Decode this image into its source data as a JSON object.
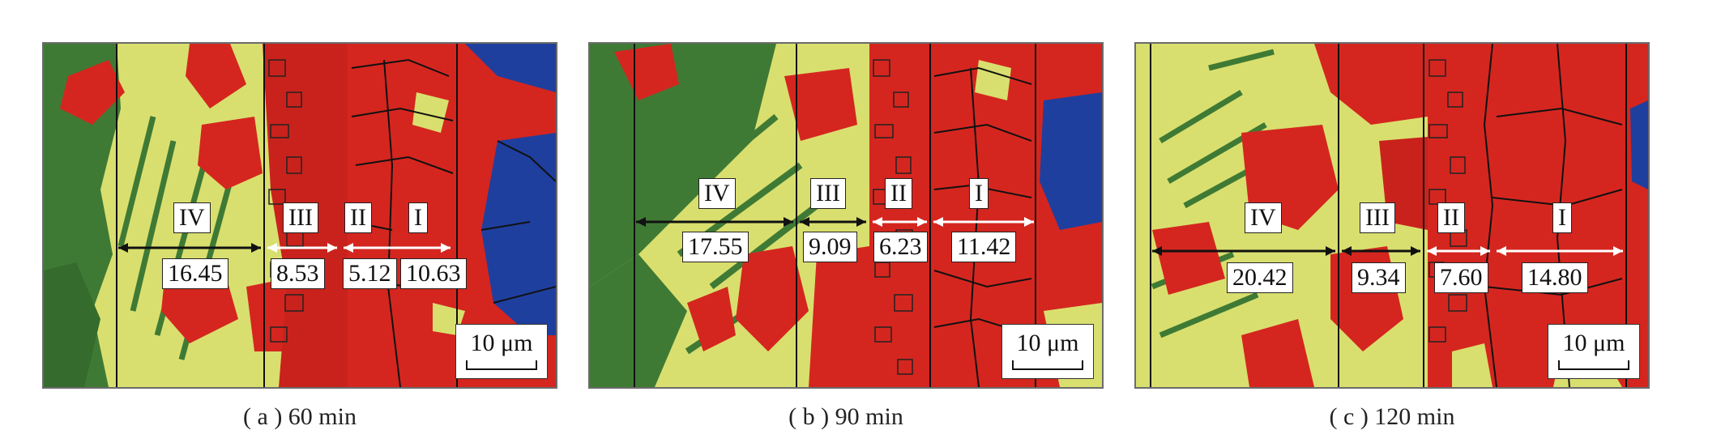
{
  "colors": {
    "yellow_phase": "#d9df6e",
    "red_phase": "#d4261f",
    "green_phase": "#3f7a35",
    "blue_phase": "#1f3f9e",
    "boundary": "#111111",
    "arrow_dark": "#111111",
    "arrow_light": "#ffffff"
  },
  "panels": [
    {
      "caption": "( a ) 60 min",
      "zones": [
        {
          "roman": "IV",
          "value": "16.45"
        },
        {
          "roman": "III",
          "value": "8.53"
        },
        {
          "roman": "II",
          "value": "5.12"
        },
        {
          "roman": "I",
          "value": "10.63"
        }
      ],
      "scale_label": "10 μm"
    },
    {
      "caption": "( b ) 90 min",
      "zones": [
        {
          "roman": "IV",
          "value": "17.55"
        },
        {
          "roman": "III",
          "value": "9.09"
        },
        {
          "roman": "II",
          "value": "6.23"
        },
        {
          "roman": "I",
          "value": "11.42"
        }
      ],
      "scale_label": "10 μm"
    },
    {
      "caption": "( c ) 120 min",
      "zones": [
        {
          "roman": "IV",
          "value": "20.42"
        },
        {
          "roman": "III",
          "value": "9.34"
        },
        {
          "roman": "II",
          "value": "7.60"
        },
        {
          "roman": "I",
          "value": "14.80"
        }
      ],
      "scale_label": "10 μm"
    }
  ]
}
